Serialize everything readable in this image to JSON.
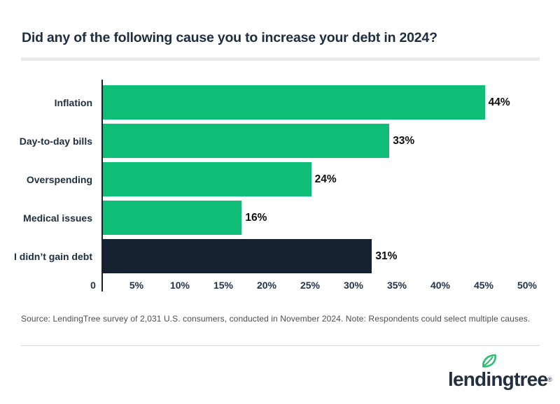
{
  "header": {
    "title": "Did any of the following cause you to increase your debt in 2024?"
  },
  "chart_data": {
    "type": "bar",
    "orientation": "horizontal",
    "title": "Did any of the following cause you to increase your debt in 2024?",
    "categories": [
      "Inflation",
      "Day-to-day bills",
      "Overspending",
      "Medical issues",
      "I didn’t gain debt"
    ],
    "values": [
      44,
      33,
      24,
      16,
      31
    ],
    "value_labels": [
      "44%",
      "33%",
      "24%",
      "16%",
      "31%"
    ],
    "bar_colors": [
      "#0EBE76",
      "#0EBE76",
      "#0EBE76",
      "#0EBE76",
      "#16222F"
    ],
    "xlim": [
      0,
      50
    ],
    "x_ticks": [
      {
        "label": "0",
        "value": 0
      },
      {
        "label": "5%",
        "value": 5
      },
      {
        "label": "10%",
        "value": 10
      },
      {
        "label": "15%",
        "value": 15
      },
      {
        "label": "20%",
        "value": 20
      },
      {
        "label": "25%",
        "value": 25
      },
      {
        "label": "30%",
        "value": 30
      },
      {
        "label": "35%",
        "value": 35
      },
      {
        "label": "40%",
        "value": 40
      },
      {
        "label": "45%",
        "value": 45
      },
      {
        "label": "50%",
        "value": 50
      }
    ],
    "grid": false,
    "legend": false
  },
  "footer": {
    "source_note": "Source: LendingTree survey of 2,031 U.S. consumers, conducted in November 2024. Note: Respondents could select multiple causes.",
    "logo": {
      "text": "lendingtree",
      "registered": "®",
      "navy": "#222F43",
      "leaf_green": "#2BBE6C"
    }
  },
  "colors": {
    "bar_green": "#0EBE76",
    "bar_navy": "#16222F",
    "title_navy": "#1E2D40",
    "tick_navy": "#22334A",
    "value_black": "#0D0D0D",
    "source_gray": "#4D4D4D",
    "divider_gray": "#E9E9E9",
    "background": "#FFFFFF"
  }
}
